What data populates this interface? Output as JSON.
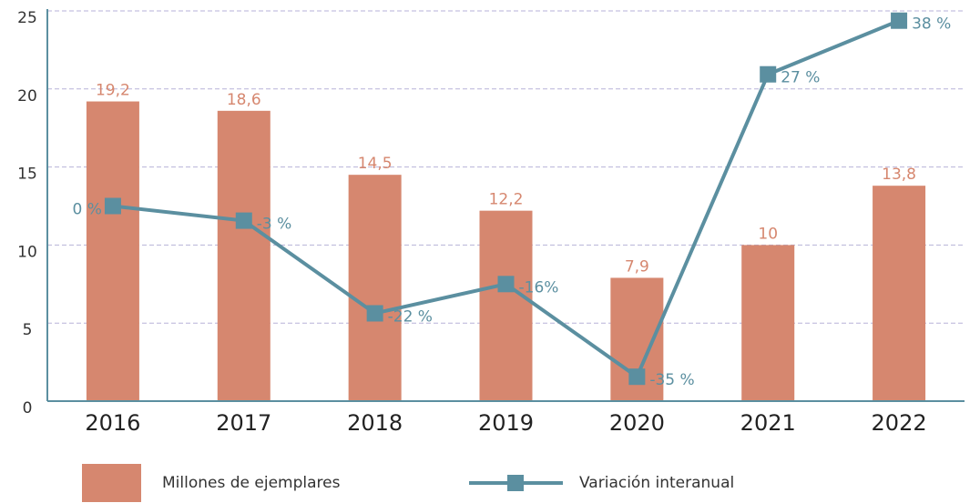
{
  "chart_data": {
    "type": "bar",
    "categories": [
      "2016",
      "2017",
      "2018",
      "2019",
      "2020",
      "2021",
      "2022"
    ],
    "series": [
      {
        "name": "Millones de ejemplares",
        "type": "bar",
        "color": "#d6876f",
        "values": [
          19.2,
          18.6,
          14.5,
          12.2,
          7.9,
          10,
          13.8
        ],
        "value_labels": [
          "19,2",
          "18,6",
          "14,5",
          "12,2",
          "7,9",
          "10",
          "13,8"
        ]
      },
      {
        "name": "Variación interanual",
        "type": "line",
        "axis": "y2",
        "color": "#5b8fa0",
        "values": [
          0,
          -3,
          -22,
          -16,
          -35,
          27,
          38
        ],
        "value_labels": [
          "0 %",
          "-3 %",
          "-22 %",
          "-16%",
          "-35 %",
          "27 %",
          "38 %"
        ]
      }
    ],
    "ylim": [
      0,
      25
    ],
    "yticks": [
      0,
      5,
      10,
      15,
      20,
      25
    ],
    "y2lim": [
      -40,
      40
    ],
    "grid": true,
    "legend": "bottom"
  }
}
